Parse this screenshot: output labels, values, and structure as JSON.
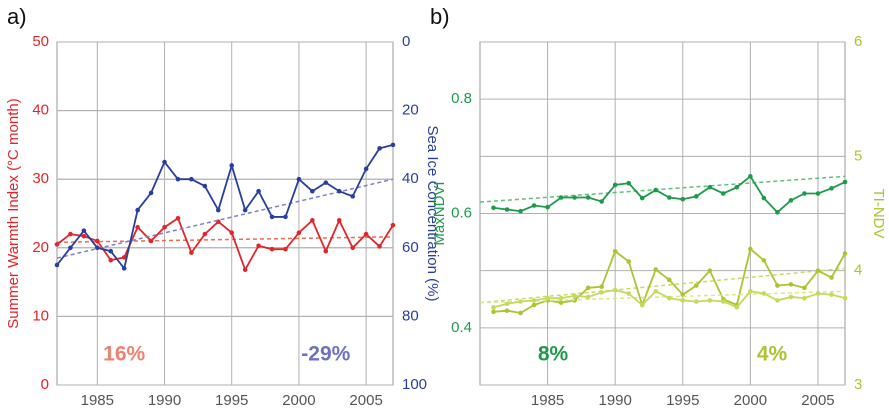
{
  "chart_data": [
    {
      "type": "line",
      "panel_label": "a)",
      "y_label": "Summer Warmth Index (°C month)",
      "y_color": "#e0262b",
      "y2_label": "Sea Ice Concentration (%)",
      "y2_color": "#2a3f9d",
      "xlim": [
        1982,
        2007
      ],
      "xticks": [
        1985,
        1990,
        1995,
        2000,
        2005
      ],
      "ylim": [
        0,
        50
      ],
      "yticks": [
        0,
        10,
        20,
        30,
        40,
        50
      ],
      "y2lim": [
        100,
        0
      ],
      "y2ticks": [
        0,
        20,
        40,
        60,
        80,
        100
      ],
      "grid": true,
      "x": [
        1982,
        1983,
        1984,
        1985,
        1986,
        1987,
        1988,
        1989,
        1990,
        1991,
        1992,
        1993,
        1994,
        1995,
        1996,
        1997,
        1998,
        1999,
        2000,
        2001,
        2002,
        2003,
        2004,
        2005,
        2006,
        2007
      ],
      "series": [
        {
          "color": "#e0262b",
          "trend_color": "#f06a5a",
          "axis": "y",
          "values": [
            20.5,
            22,
            21.7,
            21,
            18.2,
            18.6,
            23,
            21,
            23,
            24.3,
            19.3,
            22,
            23.8,
            22.2,
            16.8,
            20.3,
            19.8,
            19.8,
            22.2,
            24,
            19.5,
            24,
            20,
            22,
            20.2,
            23.3
          ],
          "trend": [
            20.8,
            21.6
          ]
        },
        {
          "color": "#2a3f9d",
          "trend_color": "#7a7fd0",
          "axis": "y2",
          "values": [
            65,
            60,
            55,
            60,
            61,
            66,
            49,
            44,
            35,
            40,
            40,
            42,
            49,
            36,
            49,
            43.5,
            51,
            51,
            40,
            43.5,
            41,
            43.5,
            45,
            37,
            31,
            30
          ],
          "trend": [
            63,
            40
          ]
        }
      ],
      "annotations": [
        {
          "text": "16%",
          "color": "#f08070"
        },
        {
          "text": "-29%",
          "color": "#7070c0"
        }
      ]
    },
    {
      "type": "line",
      "panel_label": "b)",
      "y_label": "MaxNDVI",
      "y_color": "#1f9a4a",
      "y2_label": "TI-NDV",
      "y2_color": "#a9c52f",
      "xlim": [
        1980,
        2007
      ],
      "xticks": [
        1985,
        1990,
        1995,
        2000,
        2005
      ],
      "ylim": [
        0.3,
        0.9
      ],
      "yticks": [
        0.4,
        0.6,
        0.8
      ],
      "y2lim": [
        3,
        6
      ],
      "y2ticks": [
        3,
        4,
        5,
        6
      ],
      "grid": true,
      "x": [
        1981,
        1982,
        1983,
        1984,
        1985,
        1986,
        1987,
        1988,
        1989,
        1990,
        1991,
        1992,
        1993,
        1994,
        1995,
        1996,
        1997,
        1998,
        1999,
        2000,
        2001,
        2002,
        2003,
        2004,
        2005,
        2006,
        2007
      ],
      "series": [
        {
          "color": "#1f9a4a",
          "trend_color": "#5fc07a",
          "axis": "y",
          "values": [
            0.61,
            0.607,
            0.604,
            0.614,
            0.611,
            0.628,
            0.628,
            0.628,
            0.621,
            0.65,
            0.653,
            0.627,
            0.641,
            0.628,
            0.625,
            0.63,
            0.646,
            0.635,
            0.646,
            0.665,
            0.627,
            0.602,
            0.623,
            0.635,
            0.635,
            0.644,
            0.655
          ],
          "trend": [
            0.62,
            0.665
          ]
        },
        {
          "color": "#a9c52f",
          "trend_color": "#c6dc6a",
          "axis": "y2",
          "values": [
            3.64,
            3.65,
            3.63,
            3.7,
            3.74,
            3.72,
            3.74,
            3.85,
            3.86,
            4.17,
            4.08,
            3.7,
            4.01,
            3.92,
            3.79,
            3.87,
            4,
            3.75,
            3.7,
            4.19,
            4.09,
            3.87,
            3.88,
            3.85,
            4,
            3.94,
            4.15
          ],
          "trend": [
            3.72,
            4.02
          ]
        },
        {
          "color": "#c5da5a",
          "trend_color": "#d8e890",
          "axis": "y2",
          "values": [
            3.68,
            3.71,
            3.73,
            3.74,
            3.76,
            3.76,
            3.78,
            3.77,
            3.81,
            3.83,
            3.8,
            3.7,
            3.82,
            3.76,
            3.74,
            3.73,
            3.74,
            3.73,
            3.68,
            3.82,
            3.8,
            3.74,
            3.77,
            3.76,
            3.8,
            3.79,
            3.76
          ],
          "trend": [
            3.72,
            3.82
          ]
        }
      ],
      "annotations": [
        {
          "text": "8%",
          "color": "#1f9a4a"
        },
        {
          "text": "4%",
          "color": "#a9c52f"
        }
      ]
    }
  ]
}
